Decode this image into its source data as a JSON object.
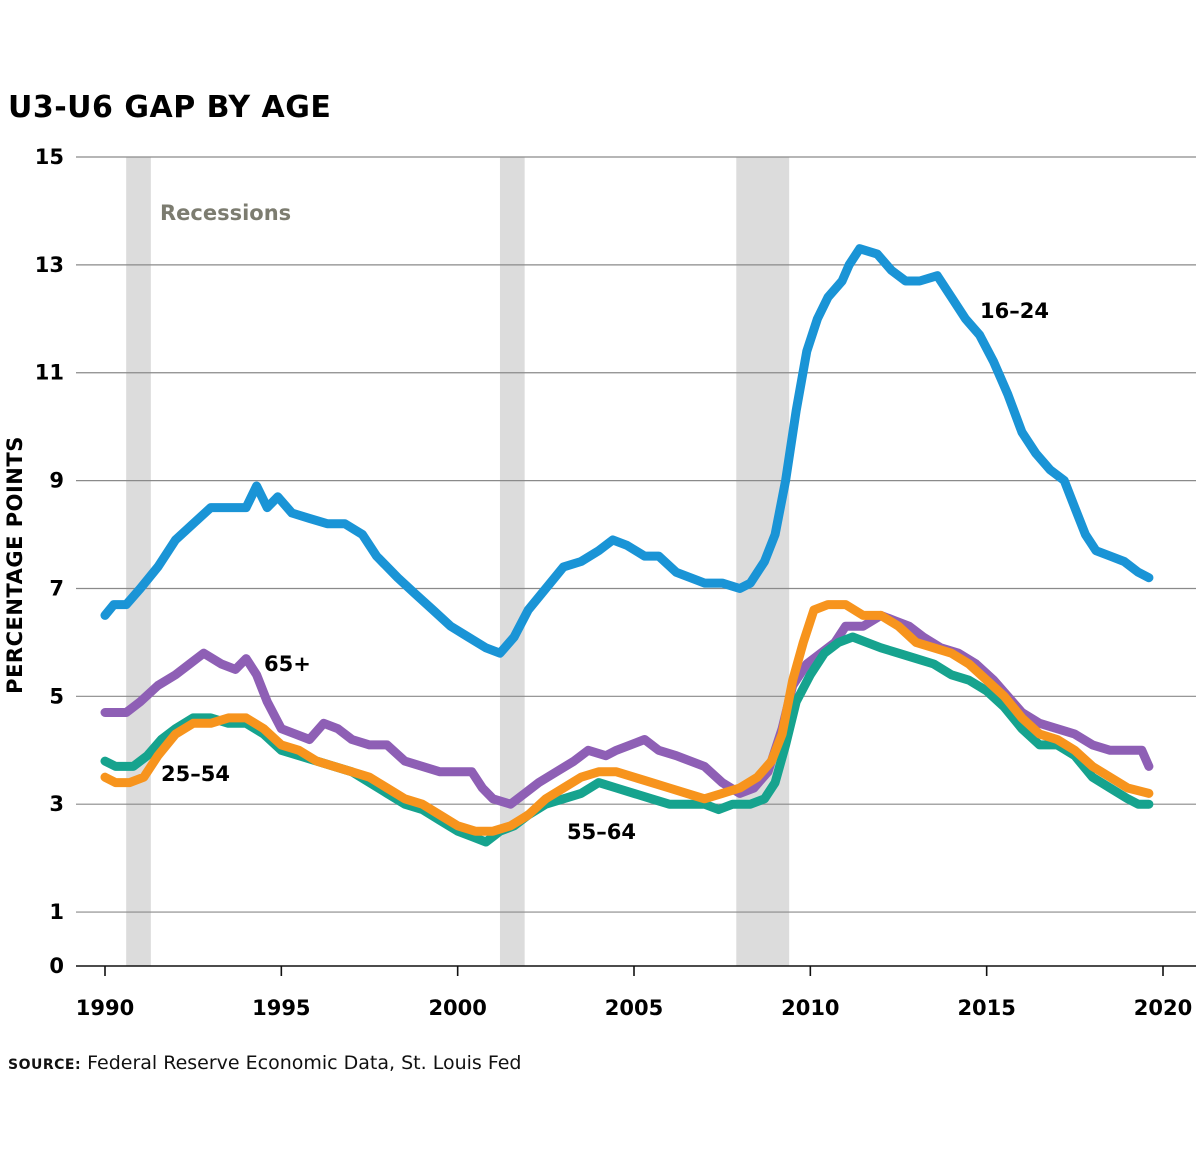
{
  "chart_data": {
    "type": "line",
    "title": "U3-U6 GAP BY AGE",
    "ylabel": "PERCENTAGE POINTS",
    "xlabel": "",
    "xlim": [
      1989.6,
      2020.5
    ],
    "ylim": [
      0,
      15
    ],
    "yticks": [
      0,
      1,
      3,
      5,
      7,
      9,
      11,
      13,
      15
    ],
    "xticks": [
      1990,
      1995,
      2000,
      2005,
      2010,
      2015,
      2020
    ],
    "ytick_labels": [
      "0",
      "1",
      "3",
      "5",
      "7",
      "9",
      "11",
      "13",
      "15"
    ],
    "xtick_labels": [
      "1990",
      "1995",
      "2000",
      "2005",
      "2010",
      "2015",
      "2020"
    ],
    "grid": "horizontal",
    "recessions": [
      [
        1990.6,
        1991.3
      ],
      [
        2001.2,
        2001.9
      ],
      [
        2007.9,
        2009.4
      ]
    ],
    "recession_label": "Recessions",
    "source_label": "SOURCE:",
    "source_text": "Federal Reserve Economic Data, St. Louis Fed",
    "series": [
      {
        "name": "16–24",
        "color": "#1a94d6",
        "points": [
          [
            1990.0,
            6.5
          ],
          [
            1990.25,
            6.7
          ],
          [
            1990.6,
            6.7
          ],
          [
            1991.0,
            7.0
          ],
          [
            1991.5,
            7.4
          ],
          [
            1992.0,
            7.9
          ],
          [
            1992.5,
            8.2
          ],
          [
            1993.0,
            8.5
          ],
          [
            1993.5,
            8.5
          ],
          [
            1994.0,
            8.5
          ],
          [
            1994.3,
            8.9
          ],
          [
            1994.6,
            8.5
          ],
          [
            1994.9,
            8.7
          ],
          [
            1995.3,
            8.4
          ],
          [
            1995.8,
            8.3
          ],
          [
            1996.3,
            8.2
          ],
          [
            1996.8,
            8.2
          ],
          [
            1997.3,
            8.0
          ],
          [
            1997.7,
            7.6
          ],
          [
            1998.3,
            7.2
          ],
          [
            1998.8,
            6.9
          ],
          [
            1999.3,
            6.6
          ],
          [
            1999.8,
            6.3
          ],
          [
            2000.3,
            6.1
          ],
          [
            2000.8,
            5.9
          ],
          [
            2001.2,
            5.8
          ],
          [
            2001.6,
            6.1
          ],
          [
            2002.0,
            6.6
          ],
          [
            2002.5,
            7.0
          ],
          [
            2003.0,
            7.4
          ],
          [
            2003.5,
            7.5
          ],
          [
            2004.0,
            7.7
          ],
          [
            2004.4,
            7.9
          ],
          [
            2004.8,
            7.8
          ],
          [
            2005.3,
            7.6
          ],
          [
            2005.7,
            7.6
          ],
          [
            2006.2,
            7.3
          ],
          [
            2006.6,
            7.2
          ],
          [
            2007.0,
            7.1
          ],
          [
            2007.5,
            7.1
          ],
          [
            2008.0,
            7.0
          ],
          [
            2008.3,
            7.1
          ],
          [
            2008.7,
            7.5
          ],
          [
            2009.0,
            8.0
          ],
          [
            2009.3,
            9.0
          ],
          [
            2009.6,
            10.3
          ],
          [
            2009.9,
            11.4
          ],
          [
            2010.2,
            12.0
          ],
          [
            2010.5,
            12.4
          ],
          [
            2010.9,
            12.7
          ],
          [
            2011.1,
            13.0
          ],
          [
            2011.4,
            13.3
          ],
          [
            2011.9,
            13.2
          ],
          [
            2012.3,
            12.9
          ],
          [
            2012.7,
            12.7
          ],
          [
            2013.1,
            12.7
          ],
          [
            2013.6,
            12.8
          ],
          [
            2014.0,
            12.4
          ],
          [
            2014.4,
            12.0
          ],
          [
            2014.8,
            11.7
          ],
          [
            2015.2,
            11.2
          ],
          [
            2015.6,
            10.6
          ],
          [
            2016.0,
            9.9
          ],
          [
            2016.4,
            9.5
          ],
          [
            2016.8,
            9.2
          ],
          [
            2017.2,
            9.0
          ],
          [
            2017.5,
            8.5
          ],
          [
            2017.8,
            8.0
          ],
          [
            2018.1,
            7.7
          ],
          [
            2018.5,
            7.6
          ],
          [
            2018.9,
            7.5
          ],
          [
            2019.3,
            7.3
          ],
          [
            2019.6,
            7.2
          ]
        ]
      },
      {
        "name": "65+",
        "color": "#8e5fb5",
        "points": [
          [
            1990.0,
            4.7
          ],
          [
            1990.6,
            4.7
          ],
          [
            1991.0,
            4.9
          ],
          [
            1991.5,
            5.2
          ],
          [
            1992.0,
            5.4
          ],
          [
            1992.4,
            5.6
          ],
          [
            1992.8,
            5.8
          ],
          [
            1993.3,
            5.6
          ],
          [
            1993.7,
            5.5
          ],
          [
            1994.0,
            5.7
          ],
          [
            1994.3,
            5.4
          ],
          [
            1994.6,
            4.9
          ],
          [
            1995.0,
            4.4
          ],
          [
            1995.4,
            4.3
          ],
          [
            1995.8,
            4.2
          ],
          [
            1996.2,
            4.5
          ],
          [
            1996.6,
            4.4
          ],
          [
            1997.0,
            4.2
          ],
          [
            1997.5,
            4.1
          ],
          [
            1998.0,
            4.1
          ],
          [
            1998.5,
            3.8
          ],
          [
            1999.0,
            3.7
          ],
          [
            1999.5,
            3.6
          ],
          [
            2000.0,
            3.6
          ],
          [
            2000.4,
            3.6
          ],
          [
            2000.7,
            3.3
          ],
          [
            2001.0,
            3.1
          ],
          [
            2001.5,
            3.0
          ],
          [
            2001.9,
            3.2
          ],
          [
            2002.3,
            3.4
          ],
          [
            2002.8,
            3.6
          ],
          [
            2003.3,
            3.8
          ],
          [
            2003.7,
            4.0
          ],
          [
            2004.2,
            3.9
          ],
          [
            2004.5,
            4.0
          ],
          [
            2004.9,
            4.1
          ],
          [
            2005.3,
            4.2
          ],
          [
            2005.7,
            4.0
          ],
          [
            2006.2,
            3.9
          ],
          [
            2006.6,
            3.8
          ],
          [
            2007.0,
            3.7
          ],
          [
            2007.5,
            3.4
          ],
          [
            2008.0,
            3.2
          ],
          [
            2008.4,
            3.3
          ],
          [
            2008.8,
            3.6
          ],
          [
            2009.2,
            4.4
          ],
          [
            2009.5,
            5.2
          ],
          [
            2009.9,
            5.6
          ],
          [
            2010.3,
            5.8
          ],
          [
            2010.7,
            6.0
          ],
          [
            2011.0,
            6.3
          ],
          [
            2011.5,
            6.3
          ],
          [
            2012.0,
            6.5
          ],
          [
            2012.4,
            6.4
          ],
          [
            2012.8,
            6.3
          ],
          [
            2013.2,
            6.1
          ],
          [
            2013.7,
            5.9
          ],
          [
            2014.2,
            5.8
          ],
          [
            2014.7,
            5.6
          ],
          [
            2015.2,
            5.3
          ],
          [
            2015.6,
            5.0
          ],
          [
            2016.0,
            4.7
          ],
          [
            2016.5,
            4.5
          ],
          [
            2017.0,
            4.4
          ],
          [
            2017.5,
            4.3
          ],
          [
            2018.0,
            4.1
          ],
          [
            2018.5,
            4.0
          ],
          [
            2019.0,
            4.0
          ],
          [
            2019.4,
            4.0
          ],
          [
            2019.6,
            3.7
          ]
        ]
      },
      {
        "name": "55–64",
        "color": "#16a38e",
        "points": [
          [
            1990.0,
            3.8
          ],
          [
            1990.3,
            3.7
          ],
          [
            1990.8,
            3.7
          ],
          [
            1991.2,
            3.9
          ],
          [
            1991.6,
            4.2
          ],
          [
            1992.0,
            4.4
          ],
          [
            1992.5,
            4.6
          ],
          [
            1993.0,
            4.6
          ],
          [
            1993.5,
            4.5
          ],
          [
            1994.0,
            4.5
          ],
          [
            1994.5,
            4.3
          ],
          [
            1995.0,
            4.0
          ],
          [
            1995.5,
            3.9
          ],
          [
            1996.0,
            3.8
          ],
          [
            1996.5,
            3.7
          ],
          [
            1997.0,
            3.6
          ],
          [
            1997.5,
            3.4
          ],
          [
            1998.0,
            3.2
          ],
          [
            1998.5,
            3.0
          ],
          [
            1999.0,
            2.9
          ],
          [
            1999.5,
            2.7
          ],
          [
            2000.0,
            2.5
          ],
          [
            2000.4,
            2.4
          ],
          [
            2000.8,
            2.3
          ],
          [
            2001.2,
            2.5
          ],
          [
            2001.6,
            2.6
          ],
          [
            2002.0,
            2.8
          ],
          [
            2002.5,
            3.0
          ],
          [
            2003.0,
            3.1
          ],
          [
            2003.5,
            3.2
          ],
          [
            2004.0,
            3.4
          ],
          [
            2004.5,
            3.3
          ],
          [
            2005.0,
            3.2
          ],
          [
            2005.5,
            3.1
          ],
          [
            2006.0,
            3.0
          ],
          [
            2006.5,
            3.0
          ],
          [
            2007.0,
            3.0
          ],
          [
            2007.4,
            2.9
          ],
          [
            2007.8,
            3.0
          ],
          [
            2008.3,
            3.0
          ],
          [
            2008.7,
            3.1
          ],
          [
            2009.0,
            3.4
          ],
          [
            2009.3,
            4.1
          ],
          [
            2009.6,
            4.9
          ],
          [
            2010.0,
            5.4
          ],
          [
            2010.4,
            5.8
          ],
          [
            2010.8,
            6.0
          ],
          [
            2011.2,
            6.1
          ],
          [
            2011.6,
            6.0
          ],
          [
            2012.0,
            5.9
          ],
          [
            2012.5,
            5.8
          ],
          [
            2013.0,
            5.7
          ],
          [
            2013.5,
            5.6
          ],
          [
            2014.0,
            5.4
          ],
          [
            2014.5,
            5.3
          ],
          [
            2015.0,
            5.1
          ],
          [
            2015.5,
            4.8
          ],
          [
            2016.0,
            4.4
          ],
          [
            2016.5,
            4.1
          ],
          [
            2017.0,
            4.1
          ],
          [
            2017.5,
            3.9
          ],
          [
            2018.0,
            3.5
          ],
          [
            2018.5,
            3.3
          ],
          [
            2019.0,
            3.1
          ],
          [
            2019.3,
            3.0
          ],
          [
            2019.6,
            3.0
          ]
        ]
      },
      {
        "name": "25–54",
        "color": "#f7941d",
        "points": [
          [
            1990.0,
            3.5
          ],
          [
            1990.3,
            3.4
          ],
          [
            1990.7,
            3.4
          ],
          [
            1991.1,
            3.5
          ],
          [
            1991.5,
            3.9
          ],
          [
            1992.0,
            4.3
          ],
          [
            1992.5,
            4.5
          ],
          [
            1993.0,
            4.5
          ],
          [
            1993.5,
            4.6
          ],
          [
            1994.0,
            4.6
          ],
          [
            1994.5,
            4.4
          ],
          [
            1995.0,
            4.1
          ],
          [
            1995.5,
            4.0
          ],
          [
            1996.0,
            3.8
          ],
          [
            1996.5,
            3.7
          ],
          [
            1997.0,
            3.6
          ],
          [
            1997.5,
            3.5
          ],
          [
            1998.0,
            3.3
          ],
          [
            1998.5,
            3.1
          ],
          [
            1999.0,
            3.0
          ],
          [
            1999.5,
            2.8
          ],
          [
            2000.0,
            2.6
          ],
          [
            2000.5,
            2.5
          ],
          [
            2001.0,
            2.5
          ],
          [
            2001.5,
            2.6
          ],
          [
            2002.0,
            2.8
          ],
          [
            2002.5,
            3.1
          ],
          [
            2003.0,
            3.3
          ],
          [
            2003.5,
            3.5
          ],
          [
            2004.0,
            3.6
          ],
          [
            2004.5,
            3.6
          ],
          [
            2005.0,
            3.5
          ],
          [
            2005.5,
            3.4
          ],
          [
            2006.0,
            3.3
          ],
          [
            2006.5,
            3.2
          ],
          [
            2007.0,
            3.1
          ],
          [
            2007.5,
            3.2
          ],
          [
            2008.0,
            3.3
          ],
          [
            2008.5,
            3.5
          ],
          [
            2008.9,
            3.8
          ],
          [
            2009.2,
            4.3
          ],
          [
            2009.5,
            5.3
          ],
          [
            2009.8,
            6.0
          ],
          [
            2010.1,
            6.6
          ],
          [
            2010.5,
            6.7
          ],
          [
            2011.0,
            6.7
          ],
          [
            2011.5,
            6.5
          ],
          [
            2012.0,
            6.5
          ],
          [
            2012.5,
            6.3
          ],
          [
            2013.0,
            6.0
          ],
          [
            2013.5,
            5.9
          ],
          [
            2014.0,
            5.8
          ],
          [
            2014.5,
            5.6
          ],
          [
            2015.0,
            5.3
          ],
          [
            2015.5,
            5.0
          ],
          [
            2016.0,
            4.6
          ],
          [
            2016.5,
            4.3
          ],
          [
            2017.0,
            4.2
          ],
          [
            2017.5,
            4.0
          ],
          [
            2018.0,
            3.7
          ],
          [
            2018.5,
            3.5
          ],
          [
            2019.0,
            3.3
          ],
          [
            2019.6,
            3.2
          ]
        ]
      }
    ],
    "series_label_text": [
      "16–24",
      "65+",
      "25–54",
      "55–64"
    ]
  }
}
